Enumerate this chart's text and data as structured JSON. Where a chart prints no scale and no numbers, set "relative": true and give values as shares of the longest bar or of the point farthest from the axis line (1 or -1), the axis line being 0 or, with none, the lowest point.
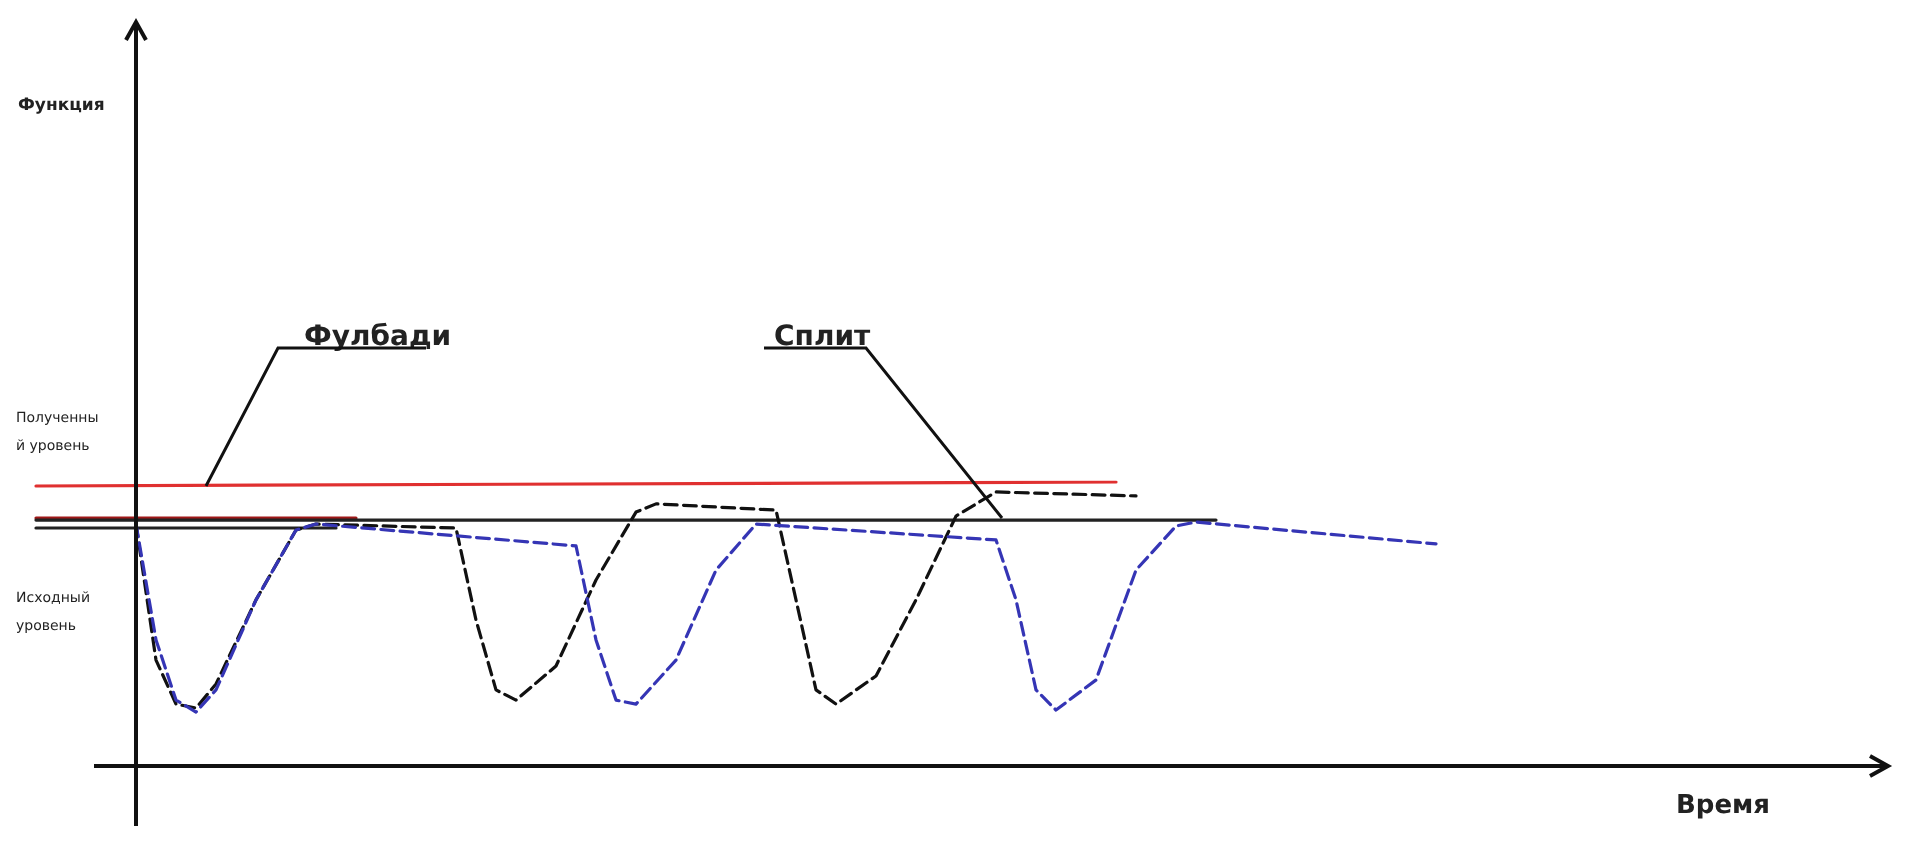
{
  "chart_data": {
    "type": "line",
    "relative": true,
    "marker": "none",
    "annotations": [
      "Фулбади",
      "Сплит",
      "Полученный уровень",
      "Исходный уровень",
      "Функция",
      "Время"
    ],
    "categories": [
      null,
      null,
      null,
      null,
      null,
      null,
      null,
      null,
      null,
      null,
      null,
      null,
      null,
      null,
      null,
      null,
      null,
      null,
      null,
      null,
      null,
      null,
      null,
      null,
      null,
      null,
      null,
      null,
      null,
      null,
      null,
      null,
      null,
      null,
      null,
      null,
      null,
      null,
      null,
      null,
      null,
      null,
      null,
      null,
      null,
      null,
      null,
      null,
      null,
      null,
      null,
      null,
      null,
      null,
      null,
      null,
      null,
      null,
      null,
      null,
      null,
      null,
      null,
      null,
      null,
      null,
      null,
      null,
      null,
      null,
      null
    ],
    "series": [
      {
        "color": "#e03030",
        "line_style": "solid",
        "values": [
          0.986,
          null,
          null,
          null,
          null,
          null,
          null,
          null,
          null,
          null,
          null,
          null,
          null,
          null,
          null,
          null,
          null,
          null,
          null,
          null,
          null,
          null,
          null,
          null,
          null,
          null,
          null,
          null,
          null,
          null,
          null,
          null,
          null,
          null,
          null,
          null,
          null,
          null,
          null,
          null,
          null,
          null,
          null,
          null,
          null,
          null,
          null,
          null,
          null,
          null,
          null,
          null,
          null,
          null,
          1,
          null,
          null,
          null,
          null,
          null,
          null,
          null,
          null,
          null,
          null,
          null,
          null,
          null,
          null,
          null,
          null
        ]
      },
      {
        "color": "#a01818",
        "line_style": "solid",
        "values": [
          0.873,
          null,
          null,
          null,
          null,
          null,
          null,
          null,
          null,
          null,
          null,
          null,
          null,
          null,
          null,
          null,
          0.873,
          null,
          null,
          null,
          null,
          null,
          null,
          null,
          null,
          null,
          null,
          null,
          null,
          null,
          null,
          null,
          null,
          null,
          null,
          null,
          null,
          null,
          null,
          null,
          null,
          null,
          null,
          null,
          null,
          null,
          null,
          null,
          null,
          null,
          null,
          null,
          null,
          null,
          null,
          null,
          null,
          null,
          null,
          null,
          null,
          null,
          null,
          null,
          null,
          null,
          null,
          null,
          null,
          null,
          null
        ]
      },
      {
        "color": "#222222",
        "line_style": "solid",
        "values": [
          0.866,
          null,
          null,
          null,
          null,
          null,
          null,
          null,
          null,
          null,
          null,
          null,
          null,
          null,
          null,
          null,
          null,
          null,
          null,
          null,
          null,
          null,
          null,
          null,
          null,
          null,
          null,
          null,
          null,
          null,
          null,
          null,
          null,
          null,
          null,
          null,
          null,
          null,
          null,
          null,
          null,
          null,
          null,
          null,
          null,
          null,
          null,
          null,
          null,
          null,
          null,
          null,
          null,
          null,
          null,
          null,
          null,
          null,
          null,
          0.866,
          null,
          null,
          null,
          null,
          null,
          null,
          null,
          null,
          null,
          null,
          null
        ]
      },
      {
        "color": "#222222",
        "line_style": "solid",
        "values": [
          0.838,
          null,
          null,
          null,
          null,
          null,
          null,
          null,
          null,
          null,
          null,
          null,
          null,
          null,
          null,
          0.838,
          null,
          null,
          null,
          null,
          null,
          null,
          null,
          null,
          null,
          null,
          null,
          null,
          null,
          null,
          null,
          null,
          null,
          null,
          null,
          null,
          null,
          null,
          null,
          null,
          null,
          null,
          null,
          null,
          null,
          null,
          null,
          null,
          null,
          null,
          null,
          null,
          null,
          null,
          null,
          null,
          null,
          null,
          null,
          null,
          null,
          null,
          null,
          null,
          null,
          null,
          null,
          null,
          null,
          null,
          null
        ]
      },
      {
        "color": "#111111",
        "line_style": "dashed",
        "values": [
          null,
          null,
          null,
          null,
          null,
          0.852,
          0.373,
          0.218,
          0.204,
          0.289,
          null,
          0.585,
          null,
          0.831,
          0.852,
          null,
          null,
          null,
          null,
          null,
          null,
          0.838,
          0.514,
          0.268,
          0.232,
          null,
          0.352,
          null,
          0.655,
          null,
          0.894,
          0.923,
          null,
          null,
          null,
          null,
          null,
          0.901,
          0.585,
          0.268,
          0.218,
          null,
          0.317,
          null,
          0.585,
          null,
          0.88,
          null,
          0.965,
          null,
          null,
          null,
          null,
          null,
          null,
          0.951,
          null,
          null,
          null,
          null,
          null,
          null,
          null,
          null,
          null,
          null,
          null,
          null,
          null,
          null,
          null
        ]
      },
      {
        "color": "#3535b5",
        "line_style": "dashed",
        "values": [
          null,
          null,
          null,
          null,
          null,
          0.852,
          0.444,
          0.232,
          0.19,
          0.268,
          null,
          0.585,
          null,
          0.831,
          0.852,
          null,
          null,
          null,
          null,
          null,
          null,
          null,
          null,
          null,
          null,
          null,
          null,
          0.775,
          0.444,
          0.232,
          0.218,
          null,
          0.373,
          null,
          0.69,
          null,
          0.852,
          null,
          null,
          null,
          null,
          null,
          null,
          null,
          null,
          null,
          null,
          null,
          0.796,
          0.585,
          0.268,
          0.197,
          null,
          0.303,
          null,
          0.69,
          null,
          0.845,
          0.859,
          null,
          null,
          null,
          null,
          null,
          null,
          null,
          null,
          null,
          null,
          null,
          0.782
        ]
      }
    ]
  }
}
